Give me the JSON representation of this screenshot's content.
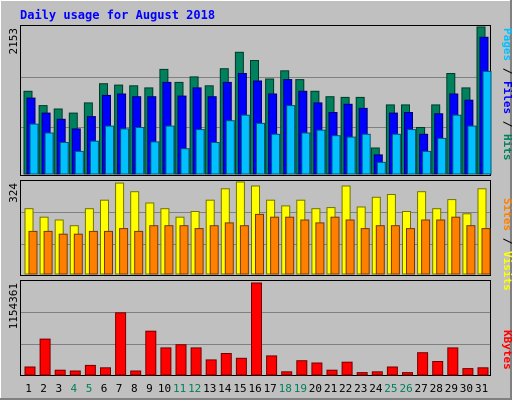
{
  "chart_data": [
    {
      "type": "bar",
      "title": "Daily usage for August 2018",
      "ymax_label": "2153",
      "categories": [
        "1",
        "2",
        "3",
        "4",
        "5",
        "6",
        "7",
        "8",
        "9",
        "10",
        "11",
        "12",
        "13",
        "14",
        "15",
        "16",
        "17",
        "18",
        "19",
        "20",
        "21",
        "22",
        "23",
        "24",
        "25",
        "26",
        "27",
        "28",
        "29",
        "30",
        "31"
      ],
      "weekend_days": [
        "4",
        "5",
        "11",
        "12",
        "18",
        "19",
        "25",
        "26"
      ],
      "legend": [
        "Pages",
        "Files",
        "Hits"
      ],
      "series": [
        {
          "name": "Hits",
          "color": "#00805c",
          "values": [
            1210,
            1000,
            950,
            890,
            1040,
            1320,
            1300,
            1290,
            1260,
            1530,
            1340,
            1420,
            1290,
            1540,
            1780,
            1660,
            1390,
            1510,
            1380,
            1210,
            1130,
            1120,
            1120,
            380,
            1010,
            1010,
            680,
            1010,
            1470,
            1260,
            2150
          ]
        },
        {
          "name": "Files",
          "color": "#0000ff",
          "values": [
            1110,
            890,
            800,
            660,
            840,
            1150,
            1170,
            1130,
            1130,
            1340,
            1140,
            1260,
            1130,
            1340,
            1470,
            1360,
            1170,
            1380,
            1210,
            1040,
            900,
            1020,
            960,
            280,
            890,
            900,
            580,
            880,
            1170,
            1080,
            2000
          ]
        },
        {
          "name": "Pages",
          "color": "#00c0ff",
          "values": [
            730,
            600,
            460,
            330,
            480,
            700,
            660,
            680,
            470,
            700,
            370,
            650,
            460,
            780,
            860,
            740,
            580,
            1000,
            600,
            640,
            560,
            540,
            580,
            170,
            580,
            650,
            330,
            520,
            860,
            700,
            1500
          ]
        }
      ]
    },
    {
      "type": "bar",
      "ymax_label": "324",
      "legend": [
        "Sites",
        "Visits"
      ],
      "series": [
        {
          "name": "Visits",
          "color": "#ffff00",
          "values": [
            230,
            200,
            190,
            170,
            230,
            260,
            320,
            290,
            250,
            230,
            200,
            220,
            260,
            300,
            324,
            310,
            260,
            240,
            260,
            230,
            234,
            310,
            236,
            270,
            280,
            220,
            290,
            230,
            262,
            212,
            300
          ]
        },
        {
          "name": "Sites",
          "color": "#ff8000",
          "values": [
            150,
            150,
            140,
            140,
            150,
            150,
            160,
            150,
            170,
            170,
            170,
            160,
            170,
            180,
            170,
            210,
            200,
            200,
            190,
            180,
            200,
            190,
            160,
            170,
            170,
            160,
            190,
            190,
            200,
            170,
            160
          ]
        }
      ]
    },
    {
      "type": "bar",
      "ymax_label": "1154361",
      "legend": [
        "KBytes"
      ],
      "series": [
        {
          "name": "KBytes",
          "color": "#ff0000",
          "values": [
            100000,
            450000,
            60000,
            50000,
            120000,
            90000,
            780000,
            50000,
            550000,
            340000,
            380000,
            340000,
            190000,
            270000,
            210000,
            1154361,
            240000,
            40000,
            180000,
            150000,
            60000,
            160000,
            30000,
            40000,
            100000,
            30000,
            280000,
            170000,
            340000,
            80000,
            90000
          ]
        }
      ]
    }
  ]
}
